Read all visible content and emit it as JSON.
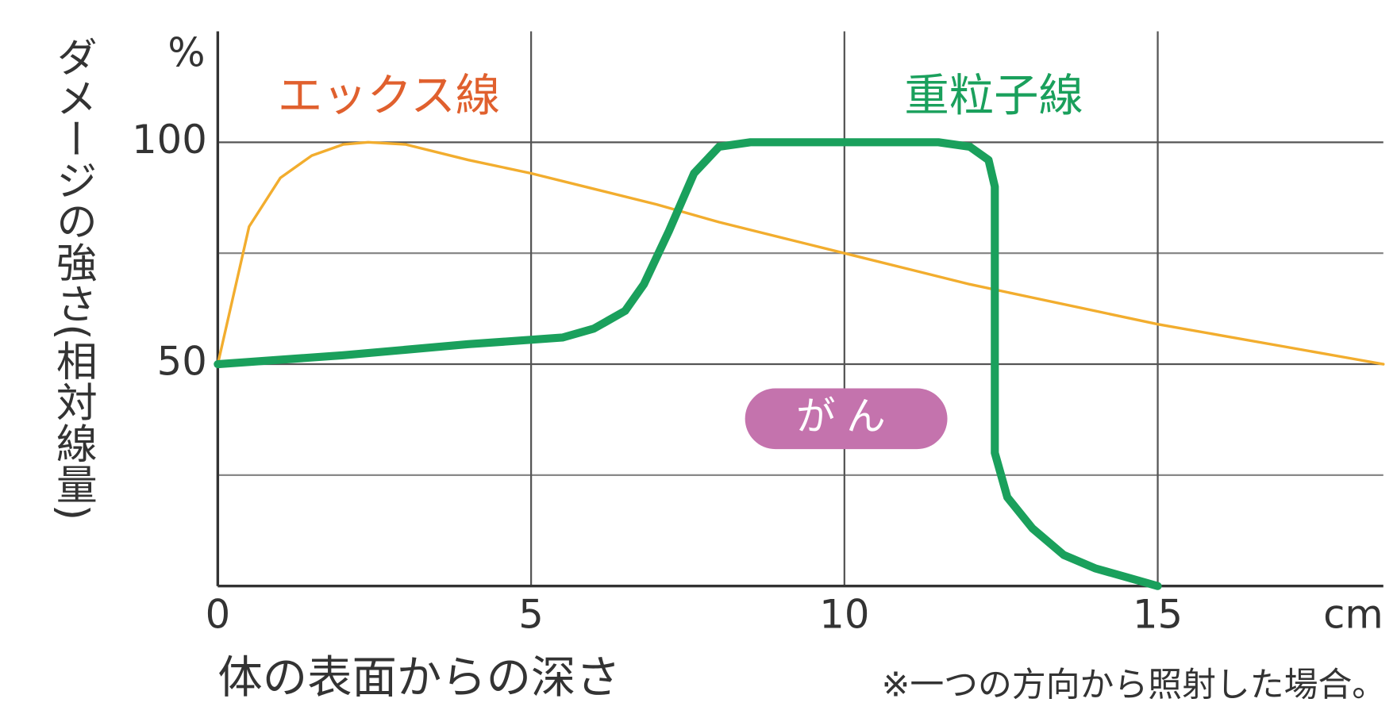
{
  "chart_data": {
    "type": "line",
    "y_label": "ダメージの強さ(相対線量)",
    "y_unit": "%",
    "x_label": "体の表面からの深さ",
    "x_unit": "cm",
    "note": "※一つの方向から照射した場合。",
    "annotation": "がん",
    "annotation_color": "#c473ad",
    "xlim": [
      0,
      18.6
    ],
    "xticks": [
      0,
      5,
      10,
      15
    ],
    "ylim": [
      0,
      125
    ],
    "yticks": [
      50,
      100
    ],
    "ygrid": [
      25,
      75
    ],
    "grid": true,
    "series": [
      {
        "name": "エックス線",
        "color": "#f2ad2e",
        "label_color": "#e0602e",
        "width": 3,
        "x": [
          0,
          0.5,
          1,
          1.5,
          2,
          2.4,
          3,
          4,
          5,
          6,
          7,
          8,
          9,
          10,
          11,
          12,
          13,
          14,
          15,
          16,
          17,
          18,
          18.6
        ],
        "values": [
          50,
          81,
          92,
          97,
          99.5,
          100,
          99.5,
          96,
          93,
          89.5,
          86,
          82,
          78.5,
          75,
          71.5,
          68,
          65,
          62,
          59,
          56.5,
          54,
          51.5,
          50
        ]
      },
      {
        "name": "重粒子線",
        "color": "#1aa05c",
        "label_color": "#1aa05c",
        "width": 9,
        "x": [
          0,
          2,
          4,
          5.5,
          6,
          6.5,
          6.8,
          7.2,
          7.6,
          8,
          8.5,
          11.5,
          12,
          12.3,
          12.4,
          12.4,
          12.6,
          13,
          13.5,
          14,
          14.5,
          15
        ],
        "values": [
          50,
          52,
          54.5,
          56,
          58,
          62,
          68,
          80,
          93,
          99,
          100,
          100,
          99,
          96,
          90,
          30,
          20,
          13,
          7,
          4,
          2,
          0
        ]
      }
    ]
  }
}
